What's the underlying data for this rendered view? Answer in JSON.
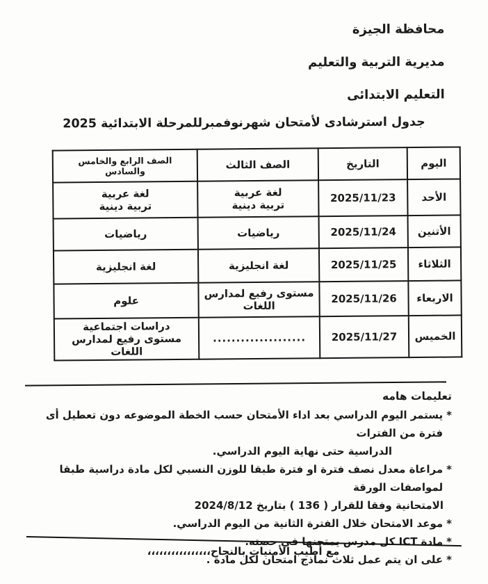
{
  "page": {
    "org_line1": "محافظة الجيزة",
    "org_line2": "مديرية التربية والتعليم",
    "org_line3": "التعليم الابتدائى",
    "title": "جدول استرشادى لأمتحان شهرنوفمبرللمرحلة الابتدائية 2025"
  },
  "table": {
    "headers": {
      "day": "اليوم",
      "date": "التاريخ",
      "grade3": "الصف الثالث",
      "grades456": "الصف الرابع والخامس والسادس"
    },
    "rows": [
      {
        "day": "الأحد",
        "date": "2025/11/23",
        "grade3": "لغة عربية\nتربية دينية",
        "grades456": "لغة عربية\nتربية دينية"
      },
      {
        "day": "الأتنين",
        "date": "2025/11/24",
        "grade3": "رياضيات",
        "grades456": "رياضيات"
      },
      {
        "day": "الثلاثاء",
        "date": "2025/11/25",
        "grade3": "لغة انجليزية",
        "grades456": "لغة انجليزية"
      },
      {
        "day": "الاربعاء",
        "date": "2025/11/26",
        "grade3": "مستوى رفيع لمدارس\nاللغات",
        "grades456": "علوم"
      },
      {
        "day": "الخميس",
        "date": "2025/11/27",
        "grade3": "....................",
        "grades456": "دراسات اجتماعية\nمستوى رفيع لمدارس اللغات"
      }
    ]
  },
  "notes": {
    "heading": "تعليمات هامه",
    "bullet_char": "*",
    "items": [
      {
        "text": "يستمر اليوم الدراسي بعد اداء الأمتحان حسب الخطة الموضوعه دون تعطيل أى فترة من الفترات",
        "cont": "الدراسية حتى نهاية اليوم الدراسي."
      },
      {
        "text": "مراعاة معدل نصف فترة او فترة طبقا للوزن النسبي لكل مادة دراسية طبقا لمواصفات الورقة",
        "cont": "الامتحانية وفقا للقرار ( 136 )  بتاريخ 2024/8/12"
      },
      {
        "text": "موعد الامتحان خلال الفترة الثانية من اليوم الدراسي.",
        "cont": ""
      },
      {
        "text": "مادة ICT كل مدرس يمتحنها في حصته.",
        "cont": ""
      },
      {
        "text": "على ان يتم عمل ثلاث نماذج امتحان لكل مادة .",
        "cont": ""
      }
    ]
  },
  "footer": {
    "closing": "مع أطيب الأمنيات بالنجاح،،،،،،،،،،،،،،،،"
  },
  "colors": {
    "ink": "#1b1b1b",
    "paper": "#fdfdfc"
  }
}
